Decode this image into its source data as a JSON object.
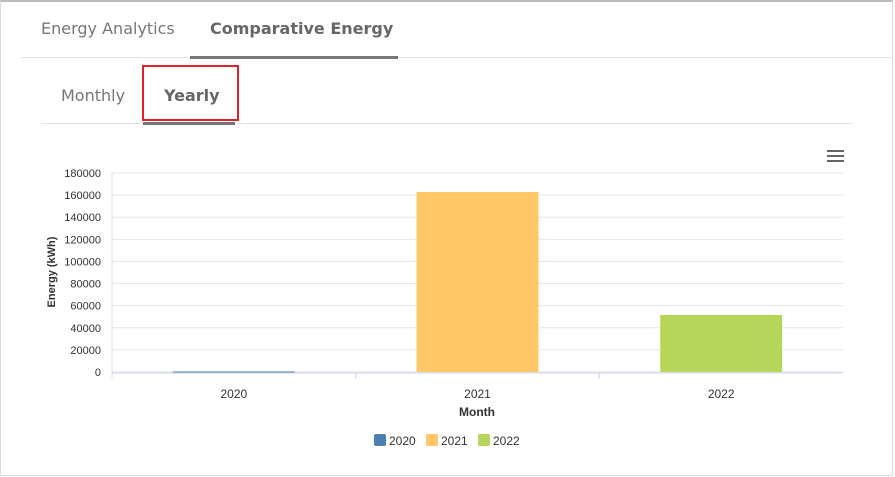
{
  "tabs": [
    {
      "label": "Energy Analytics",
      "active": false
    },
    {
      "label": "Comparative Energy",
      "active": true
    }
  ],
  "subtabs": [
    {
      "label": "Monthly",
      "active": false
    },
    {
      "label": "Yearly",
      "active": true
    }
  ],
  "chart_data": {
    "type": "bar",
    "categories": [
      "2020",
      "2021",
      "2022"
    ],
    "values": [
      500,
      162800,
      51600
    ],
    "colors": [
      "#4e7fb3",
      "#ffc766",
      "#b5d65a"
    ],
    "xlabel": "Month",
    "ylabel": "Energy (kWh)",
    "ylim": [
      0,
      180000
    ],
    "yticks": [
      "0",
      "20000",
      "40000",
      "60000",
      "80000",
      "100000",
      "120000",
      "140000",
      "160000",
      "180000"
    ],
    "legend": [
      {
        "label": "2020",
        "color": "#4e7fb3"
      },
      {
        "label": "2021",
        "color": "#ffc766"
      },
      {
        "label": "2022",
        "color": "#b5d65a"
      }
    ],
    "legend_position": "bottom-center",
    "grid": true
  }
}
